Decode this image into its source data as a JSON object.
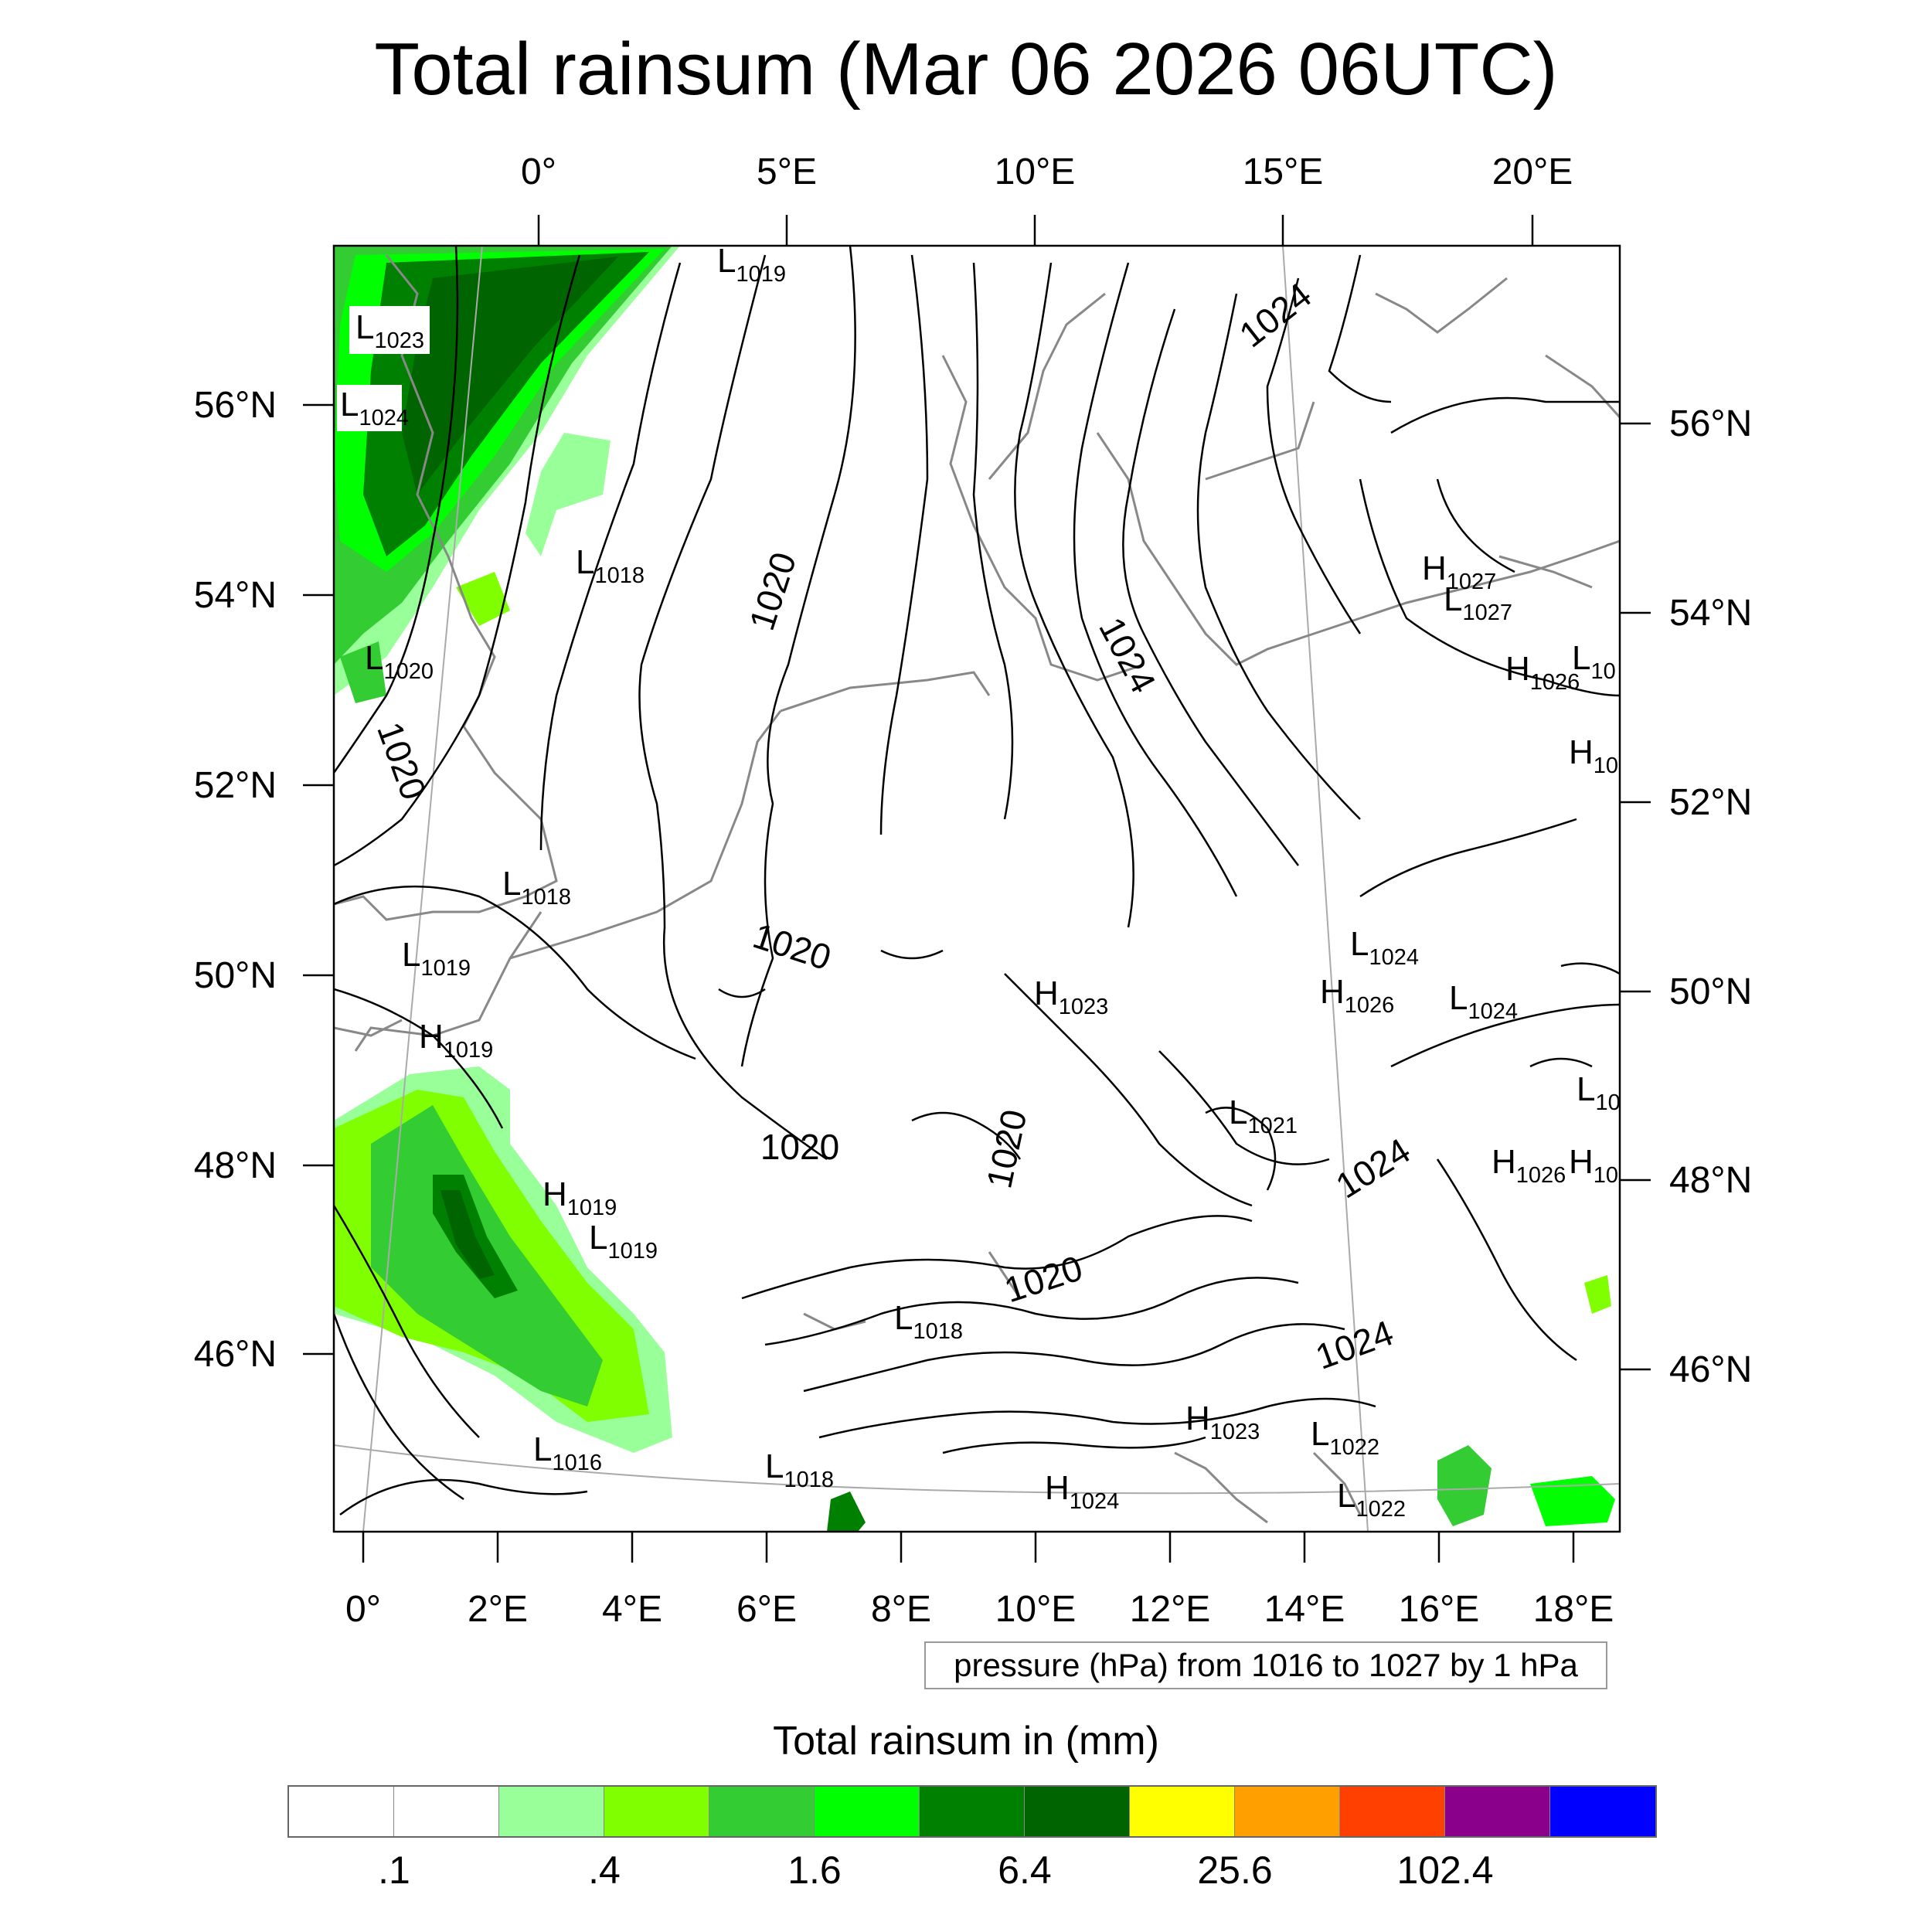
{
  "title": "Total rainsum (Mar 06 2026 06UTC)",
  "map": {
    "projection": "rotated lat-lon",
    "top_lon_labels": [
      "0°",
      "5°E",
      "10°E",
      "15°E",
      "20°E"
    ],
    "bottom_lon_labels": [
      "0°",
      "2°E",
      "4°E",
      "6°E",
      "8°E",
      "10°E",
      "12°E",
      "14°E",
      "16°E",
      "18°E"
    ],
    "left_lat_labels": [
      "56°N",
      "54°N",
      "52°N",
      "50°N",
      "48°N",
      "46°N"
    ],
    "right_lat_labels": [
      "56°N",
      "54°N",
      "52°N",
      "50°N",
      "48°N",
      "46°N"
    ],
    "colors": {
      "coastline": "#888888",
      "contour": "#000000",
      "frame": "#000000"
    }
  },
  "pressure_centers": [
    {
      "type": "L",
      "value": "1023"
    },
    {
      "type": "L",
      "value": "1024"
    },
    {
      "type": "L",
      "value": "1019"
    },
    {
      "type": "L",
      "value": "1018"
    },
    {
      "type": "L",
      "value": "1020"
    },
    {
      "type": "L",
      "value": "1018"
    },
    {
      "type": "L",
      "value": "1019"
    },
    {
      "type": "H",
      "value": "1019"
    },
    {
      "type": "H",
      "value": "1019"
    },
    {
      "type": "L",
      "value": "1019"
    },
    {
      "type": "L",
      "value": "1016"
    },
    {
      "type": "L",
      "value": "1018"
    },
    {
      "type": "L",
      "value": "1018"
    },
    {
      "type": "H",
      "value": "1024"
    },
    {
      "type": "H",
      "value": "1023"
    },
    {
      "type": "L",
      "value": "1021"
    },
    {
      "type": "H",
      "value": "1026"
    },
    {
      "type": "L",
      "value": "1024"
    },
    {
      "type": "L",
      "value": "1024"
    },
    {
      "type": "H",
      "value": "1027"
    },
    {
      "type": "L",
      "value": "1027"
    },
    {
      "type": "H",
      "value": "1026"
    },
    {
      "type": "L",
      "value": "10"
    },
    {
      "type": "H",
      "value": "10"
    },
    {
      "type": "L",
      "value": "10"
    },
    {
      "type": "H",
      "value": "1026"
    },
    {
      "type": "H",
      "value": "10"
    },
    {
      "type": "H",
      "value": "1023"
    },
    {
      "type": "L",
      "value": "1022"
    },
    {
      "type": "L",
      "value": "1022"
    }
  ],
  "contour_labels": [
    "1020",
    "1020",
    "1020",
    "1020",
    "1020",
    "1020",
    "1024",
    "1024",
    "1024",
    "1024"
  ],
  "info_box": "pressure (hPa) from 1016 to 1027 by 1 hPa",
  "legend": {
    "title": "Total rainsum in (mm)",
    "colors": [
      "#ffffff",
      "#ffffff",
      "#99ff99",
      "#80ff00",
      "#33cc33",
      "#00ff00",
      "#008000",
      "#006400",
      "#ffff00",
      "#ffa000",
      "#ff4000",
      "#8b008b",
      "#0000ff"
    ],
    "labels": [
      ".1",
      ".4",
      "1.6",
      "6.4",
      "25.6",
      "102.4"
    ]
  }
}
